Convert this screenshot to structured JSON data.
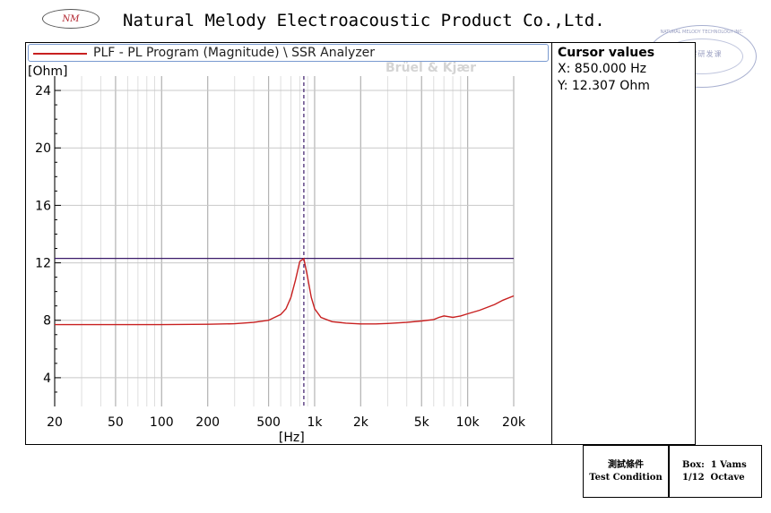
{
  "header": {
    "logo_text": "NM",
    "company_name": "Natural Melody Electroacoustic Product Co.,Ltd.",
    "stamp_top": "NATURAL MELODY TECHNOLOGY INC.",
    "stamp_center": "工程研发课"
  },
  "legend": {
    "label": "PLF - PL Program (Magnitude) \\ SSR Analyzer"
  },
  "watermark": "Brüel & Kjær",
  "cursor": {
    "title": "Cursor values",
    "x": "X: 850.000 Hz",
    "y": "Y: 12.307 Ohm"
  },
  "test_condition": {
    "label_cn": "測試條件",
    "label_en": "Test Condition",
    "box_line": "Box:  1 Vams",
    "octave_line": "1/12  Octave"
  },
  "chart_data": {
    "type": "line",
    "title": "",
    "xlabel": "[Hz]",
    "ylabel": "[Ohm]",
    "xscale": "log",
    "xlim": [
      20,
      20000
    ],
    "ylim": [
      2,
      25
    ],
    "x_ticks": [
      20,
      50,
      100,
      200,
      500,
      1000,
      2000,
      5000,
      10000,
      20000
    ],
    "x_tick_labels": [
      "20",
      "50",
      "100",
      "200",
      "500",
      "1k",
      "2k",
      "5k",
      "10k",
      "20k"
    ],
    "y_ticks": [
      4,
      8,
      12,
      16,
      20,
      24
    ],
    "y_tick_labels": [
      "4",
      "8",
      "12",
      "16",
      "20",
      "24"
    ],
    "grid": true,
    "legend_position": "top",
    "series": [
      {
        "name": "PLF - PL Program (Magnitude) \\ SSR Analyzer",
        "color": "#c82020",
        "x": [
          20,
          50,
          100,
          200,
          300,
          400,
          500,
          600,
          650,
          700,
          750,
          800,
          850,
          900,
          950,
          1000,
          1100,
          1300,
          1600,
          2000,
          2500,
          3000,
          4000,
          5000,
          6000,
          6500,
          7000,
          7500,
          8000,
          9000,
          10000,
          12000,
          15000,
          17000,
          20000
        ],
        "y": [
          7.7,
          7.7,
          7.7,
          7.72,
          7.76,
          7.85,
          8.0,
          8.4,
          8.8,
          9.6,
          10.8,
          12.1,
          12.3,
          11.0,
          9.6,
          8.8,
          8.2,
          7.9,
          7.8,
          7.75,
          7.75,
          7.78,
          7.85,
          7.95,
          8.05,
          8.2,
          8.3,
          8.25,
          8.2,
          8.3,
          8.45,
          8.7,
          9.1,
          9.4,
          9.7
        ]
      }
    ],
    "cursor": {
      "x": 850,
      "y": 12.307,
      "color": "#3a1a6a"
    }
  }
}
